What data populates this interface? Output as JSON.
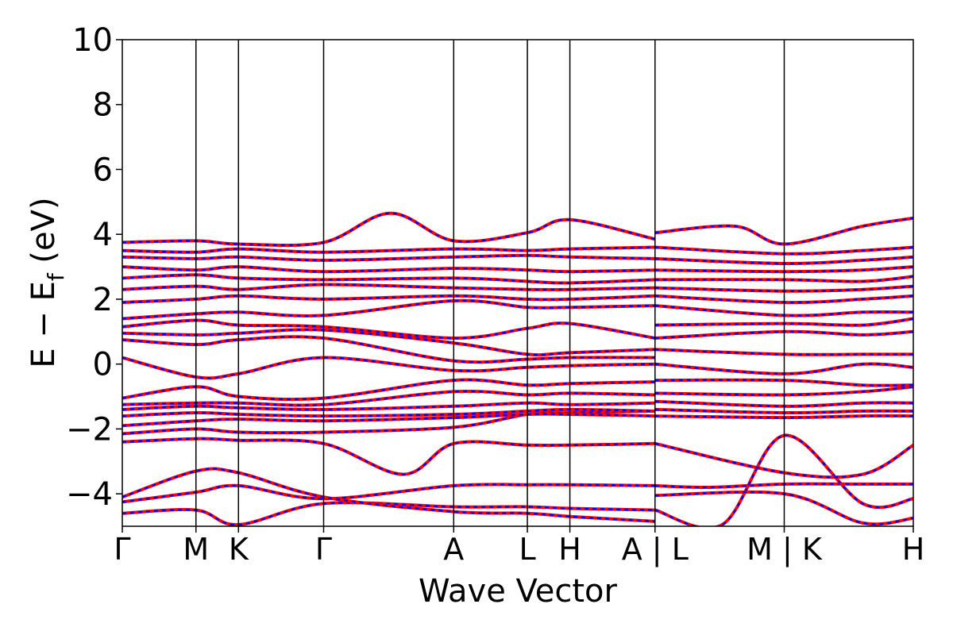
{
  "chart_data": {
    "type": "line",
    "xlabel": "Wave Vector",
    "ylabel_parts": [
      "E  −  E",
      "f",
      " (eV)"
    ],
    "ylim": [
      -5,
      10
    ],
    "yticks": [
      -4,
      -2,
      0,
      2,
      4,
      6,
      8,
      10
    ],
    "ytick_labels": [
      "−4",
      "−2",
      "0",
      "2",
      "4",
      "6",
      "8",
      "10"
    ],
    "grid": false,
    "kpoint_labels": [
      "Γ",
      "M",
      "K",
      "Γ",
      "A",
      "L",
      "H",
      "A | L",
      "M | K",
      "H"
    ],
    "kpoint_positions": [
      0,
      0.577,
      0.91,
      1.577,
      2.596,
      3.173,
      3.506,
      4.173,
      5.185,
      6.196
    ],
    "segment_breaks": [
      4.173,
      5.185
    ],
    "line_styles": {
      "solid_color": "#ff0000",
      "dashed_color": "#0000ff"
    },
    "bands": [
      {
        "x": [
          0,
          0.577,
          0.91,
          1.577,
          2.596,
          3.173,
          3.506,
          4.173
        ],
        "y": [
          -4.25,
          -3.95,
          -3.75,
          -4.15,
          -3.75,
          -3.72,
          -3.72,
          -3.75
        ]
      },
      {
        "x": [
          0,
          0.577,
          0.91,
          1.577,
          2.596,
          3.173,
          3.506,
          4.173
        ],
        "y": [
          -4.6,
          -4.5,
          -4.95,
          -4.3,
          -4.4,
          -4.4,
          -4.45,
          -4.5
        ]
      },
      {
        "x": [
          0,
          0.577,
          0.91,
          1.577,
          2.596,
          3.173,
          3.506,
          4.173
        ],
        "y": [
          -4.1,
          -3.3,
          -3.35,
          -4.1,
          -4.55,
          -4.6,
          -4.7,
          -4.85
        ]
      },
      {
        "x": [
          0,
          0.577,
          0.91,
          1.577,
          2.2,
          2.596,
          3.173,
          3.506,
          4.173
        ],
        "y": [
          -2.4,
          -2.3,
          -2.35,
          -2.45,
          -3.4,
          -2.45,
          -2.5,
          -2.5,
          -2.45
        ]
      },
      {
        "x": [
          0,
          0.577,
          0.91,
          1.577,
          2.596,
          3.173,
          3.506,
          4.173
        ],
        "y": [
          -2.15,
          -2.0,
          -2.1,
          -2.1,
          -1.95,
          -1.55,
          -1.5,
          -1.45
        ]
      },
      {
        "x": [
          0,
          0.577,
          0.91,
          1.577,
          2.596,
          3.173,
          3.506,
          4.173
        ],
        "y": [
          -1.9,
          -1.75,
          -1.7,
          -1.75,
          -1.65,
          -1.55,
          -1.55,
          -1.6
        ]
      },
      {
        "x": [
          0,
          0.577,
          0.91,
          1.577,
          2.596,
          3.173,
          3.506,
          4.173
        ],
        "y": [
          -1.6,
          -1.5,
          -1.55,
          -1.6,
          -1.55,
          -1.45,
          -1.4,
          -1.45
        ]
      },
      {
        "x": [
          0,
          0.577,
          0.91,
          1.577,
          2.596,
          3.173,
          3.506,
          4.173
        ],
        "y": [
          -1.4,
          -1.3,
          -1.35,
          -1.4,
          -1.3,
          -1.2,
          -1.25,
          -1.2
        ]
      },
      {
        "x": [
          0,
          0.577,
          0.91,
          1.577,
          2.596,
          3.173,
          3.506,
          4.173
        ],
        "y": [
          -1.25,
          -1.2,
          -1.2,
          -1.25,
          -0.85,
          -0.95,
          -0.9,
          -0.95
        ]
      },
      {
        "x": [
          0,
          0.577,
          0.91,
          1.577,
          2.596,
          3.173,
          3.506,
          4.173
        ],
        "y": [
          -1.05,
          -0.7,
          -1.0,
          -1.05,
          -0.5,
          -0.65,
          -0.6,
          -0.55
        ]
      },
      {
        "x": [
          0,
          0.577,
          0.91,
          1.577,
          2.596,
          3.173,
          3.506,
          4.173
        ],
        "y": [
          0.2,
          -0.4,
          -0.3,
          0.2,
          -0.2,
          -0.1,
          -0.05,
          0.0
        ]
      },
      {
        "x": [
          0,
          0.577,
          0.91,
          1.577,
          2.596,
          3.173,
          3.506,
          4.173
        ],
        "y": [
          0.75,
          0.6,
          0.75,
          0.8,
          0.1,
          0.15,
          0.2,
          0.2
        ]
      },
      {
        "x": [
          0,
          0.577,
          0.91,
          1.577,
          2.596,
          3.173,
          3.506,
          4.173
        ],
        "y": [
          0.95,
          0.9,
          0.95,
          1.05,
          0.65,
          0.3,
          0.35,
          0.45
        ]
      },
      {
        "x": [
          0,
          0.577,
          0.91,
          1.577,
          2.596,
          3.173,
          3.506,
          4.173
        ],
        "y": [
          1.15,
          1.35,
          1.2,
          1.15,
          0.8,
          1.1,
          1.25,
          0.8
        ]
      },
      {
        "x": [
          0,
          0.577,
          0.91,
          1.577,
          2.596,
          3.173,
          3.506,
          4.173
        ],
        "y": [
          1.4,
          1.55,
          1.6,
          1.5,
          1.95,
          1.75,
          1.75,
          1.8
        ]
      },
      {
        "x": [
          0,
          0.577,
          0.91,
          1.577,
          2.596,
          3.173,
          3.506,
          4.173
        ],
        "y": [
          1.9,
          2.0,
          2.1,
          2.0,
          2.1,
          2.0,
          2.0,
          2.1
        ]
      },
      {
        "x": [
          0,
          0.577,
          0.91,
          1.577,
          2.596,
          3.173,
          3.506,
          4.173
        ],
        "y": [
          2.3,
          2.4,
          2.3,
          2.45,
          2.35,
          2.3,
          2.3,
          2.35
        ]
      },
      {
        "x": [
          0,
          0.577,
          0.91,
          1.577,
          2.596,
          3.173,
          3.506,
          4.173
        ],
        "y": [
          2.65,
          2.75,
          2.65,
          2.6,
          2.65,
          2.55,
          2.5,
          2.6
        ]
      },
      {
        "x": [
          0,
          0.577,
          0.91,
          1.577,
          2.596,
          3.173,
          3.506,
          4.173
        ],
        "y": [
          3.0,
          2.9,
          3.0,
          2.85,
          2.95,
          2.9,
          2.85,
          2.9
        ]
      },
      {
        "x": [
          0,
          0.577,
          0.91,
          1.577,
          2.596,
          3.173,
          3.506,
          4.173
        ],
        "y": [
          3.3,
          3.25,
          3.3,
          3.2,
          3.3,
          3.35,
          3.3,
          3.25
        ]
      },
      {
        "x": [
          0,
          0.577,
          0.91,
          1.577,
          2.596,
          3.173,
          3.506,
          4.173
        ],
        "y": [
          3.5,
          3.45,
          3.55,
          3.45,
          3.55,
          3.5,
          3.55,
          3.6
        ]
      },
      {
        "x": [
          0,
          0.577,
          0.91,
          1.577,
          2.1,
          2.596,
          3.173,
          3.506,
          4.173
        ],
        "y": [
          3.75,
          3.8,
          3.7,
          3.75,
          4.65,
          3.8,
          4.05,
          4.45,
          3.85
        ]
      },
      {
        "x": [
          4.173,
          4.6,
          5.185,
          5.8,
          6.196
        ],
        "y": [
          -3.75,
          -3.8,
          -3.7,
          -3.7,
          -3.7
        ]
      },
      {
        "x": [
          4.173,
          4.7,
          5.185,
          5.8,
          6.196
        ],
        "y": [
          -4.5,
          -4.95,
          -2.2,
          -4.3,
          -4.15
        ]
      },
      {
        "x": [
          4.173,
          5.185,
          5.8,
          6.196
        ],
        "y": [
          -4.05,
          -4.0,
          -4.9,
          -4.75
        ]
      },
      {
        "x": [
          4.173,
          5.185,
          5.8,
          6.196
        ],
        "y": [
          -2.45,
          -3.35,
          -3.4,
          -2.5
        ]
      },
      {
        "x": [
          4.173,
          5.185,
          5.8,
          6.196
        ],
        "y": [
          -1.6,
          -1.65,
          -1.6,
          -1.6
        ]
      },
      {
        "x": [
          4.173,
          5.185,
          5.8,
          6.196
        ],
        "y": [
          -1.4,
          -1.5,
          -1.45,
          -1.45
        ]
      },
      {
        "x": [
          4.173,
          5.185,
          5.8,
          6.196
        ],
        "y": [
          -1.15,
          -1.3,
          -1.2,
          -1.2
        ]
      },
      {
        "x": [
          4.173,
          5.185,
          5.8,
          6.196
        ],
        "y": [
          -0.9,
          -0.95,
          -0.85,
          -0.7
        ]
      },
      {
        "x": [
          4.173,
          5.185,
          5.8,
          6.196
        ],
        "y": [
          -0.5,
          -0.5,
          -0.65,
          -0.65
        ]
      },
      {
        "x": [
          4.173,
          5.185,
          5.8,
          6.196
        ],
        "y": [
          0.0,
          -0.3,
          0.0,
          -0.1
        ]
      },
      {
        "x": [
          4.173,
          5.185,
          5.8,
          6.196
        ],
        "y": [
          0.45,
          0.3,
          0.3,
          0.3
        ]
      },
      {
        "x": [
          4.173,
          5.185,
          5.8,
          6.196
        ],
        "y": [
          0.8,
          1.0,
          0.9,
          1.0
        ]
      },
      {
        "x": [
          4.173,
          5.185,
          5.8,
          6.196
        ],
        "y": [
          1.2,
          1.25,
          1.2,
          1.4
        ]
      },
      {
        "x": [
          4.173,
          5.185,
          5.8,
          6.196
        ],
        "y": [
          1.8,
          1.5,
          1.6,
          1.6
        ]
      },
      {
        "x": [
          4.173,
          5.185,
          5.8,
          6.196
        ],
        "y": [
          2.1,
          1.9,
          2.0,
          2.1
        ]
      },
      {
        "x": [
          4.173,
          5.185,
          5.8,
          6.196
        ],
        "y": [
          2.35,
          2.25,
          2.3,
          2.4
        ]
      },
      {
        "x": [
          4.173,
          5.185,
          5.8,
          6.196
        ],
        "y": [
          2.6,
          2.6,
          2.55,
          2.7
        ]
      },
      {
        "x": [
          4.173,
          5.185,
          5.8,
          6.196
        ],
        "y": [
          2.9,
          2.85,
          2.9,
          3.0
        ]
      },
      {
        "x": [
          4.173,
          5.185,
          5.8,
          6.196
        ],
        "y": [
          3.25,
          3.1,
          3.2,
          3.3
        ]
      },
      {
        "x": [
          4.173,
          5.185,
          5.8,
          6.196
        ],
        "y": [
          3.6,
          3.4,
          3.5,
          3.6
        ]
      },
      {
        "x": [
          4.173,
          4.8,
          5.185,
          5.8,
          6.196
        ],
        "y": [
          4.05,
          4.25,
          3.7,
          4.25,
          4.5
        ]
      }
    ]
  }
}
